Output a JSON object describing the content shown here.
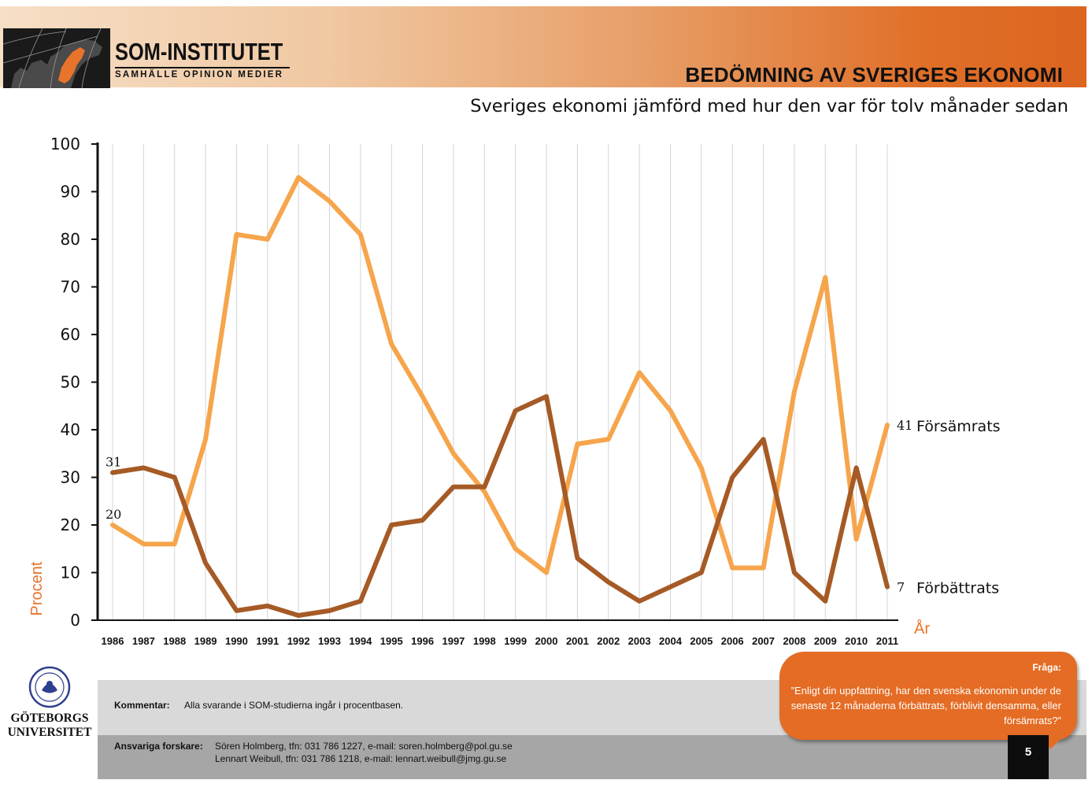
{
  "header": {
    "logo_name": "SOM-INSTITUTET",
    "logo_tagline": "SAMHÄLLE OPINION MEDIER",
    "title": "BEDÖMNING AV SVERIGES EKONOMI"
  },
  "subtitle": "Sveriges ekonomi jämförd med hur den var för tolv månader sedan",
  "colors": {
    "header_gradient_start": "#f6dfc6",
    "header_gradient_end": "#dc6520",
    "forsamrats": "#f6a54c",
    "forbattrats": "#a65a25",
    "axis_label": "#e8742c",
    "bubble": "#e46c24"
  },
  "chart_data": {
    "type": "line",
    "x": [
      "1986",
      "1987",
      "1988",
      "1989",
      "1990",
      "1991",
      "1992",
      "1993",
      "1994",
      "1995",
      "1996",
      "1997",
      "1998",
      "1999",
      "2000",
      "2001",
      "2002",
      "2003",
      "2004",
      "2005",
      "2006",
      "2007",
      "2008",
      "2009",
      "2010",
      "2011"
    ],
    "series": [
      {
        "name": "Försämrats",
        "color": "#f6a54c",
        "values": [
          20,
          16,
          16,
          38,
          81,
          80,
          93,
          88,
          81,
          58,
          47,
          35,
          27,
          15,
          10,
          37,
          38,
          52,
          44,
          32,
          11,
          11,
          48,
          72,
          17,
          41
        ],
        "start_label": "20",
        "end_label": "41"
      },
      {
        "name": "Förbättrats",
        "color": "#a65a25",
        "values": [
          31,
          32,
          30,
          12,
          2,
          3,
          1,
          2,
          4,
          20,
          21,
          28,
          28,
          44,
          47,
          13,
          8,
          4,
          7,
          10,
          30,
          38,
          10,
          4,
          32,
          7
        ],
        "start_label": "31",
        "end_label": "7"
      }
    ],
    "ylim": [
      0,
      100
    ],
    "yticks": [
      0,
      10,
      20,
      30,
      40,
      50,
      60,
      70,
      80,
      90,
      100
    ],
    "ylabel": "Procent",
    "xlabel": "År",
    "grid": "vertical",
    "legend": "inline-right"
  },
  "footer": {
    "comment_label": "Kommentar:",
    "comment_text": "Alla svarande i SOM-studierna ingår i procentbasen.",
    "researchers_label": "Ansvariga forskare:",
    "researcher_1": "Sören Holmberg, tfn: 031 786 1227, e-mail: soren.holmberg@pol.gu.se",
    "researcher_2": "Lennart Weibull, tfn: 031 786 1218, e-mail: lennart.weibull@jmg.gu.se",
    "university_line1": "GÖTEBORGS",
    "university_line2": "UNIVERSITET",
    "seal_icon": "university-seal-icon"
  },
  "question": {
    "label": "Fråga:",
    "text": "”Enligt din uppfattning, har den svenska ekonomin under de senaste 12 månaderna förbättrats, förblivit densamma, eller försämrats?”"
  },
  "page_number": "5"
}
